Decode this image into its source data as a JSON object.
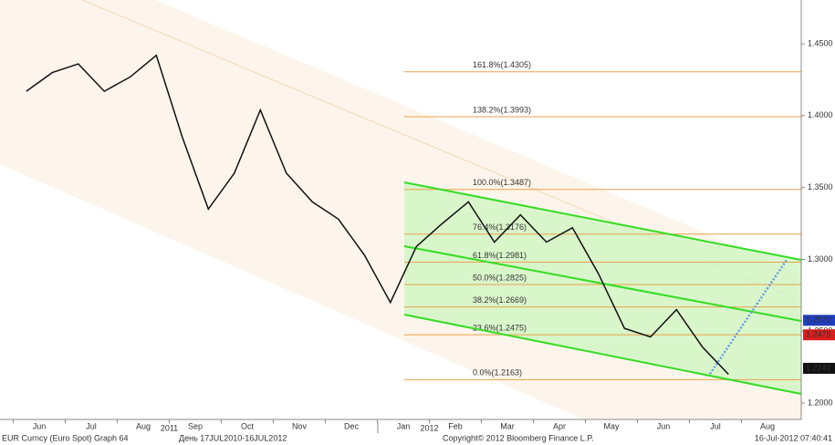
{
  "chart_data": {
    "type": "line",
    "title": "EUR Curncy (Euro Spot) Graph 64",
    "subtitle": "День 17JUL2010-16JUL2012",
    "copyright": "Copyright© 2012 Bloomberg Finance L.P.",
    "timestamp": "16-Jul-2012 07:40:41",
    "years": [
      {
        "label": "2011",
        "slot": 6
      },
      {
        "label": "2012",
        "slot": 16
      }
    ],
    "categories": [
      "Jun",
      null,
      "Jul",
      null,
      "Aug",
      null,
      "Sep",
      null,
      "Oct",
      null,
      "Nov",
      null,
      "Dec",
      null,
      "Jan",
      null,
      "Feb",
      null,
      "Mar",
      null,
      "Apr",
      null,
      "May",
      null,
      "Jun",
      null,
      "Jul",
      null,
      "Aug",
      null
    ],
    "series": [
      {
        "color": "#111111",
        "values": [
          1.417,
          1.43,
          1.436,
          1.417,
          1.427,
          1.442,
          1.385,
          1.335,
          1.36,
          1.404,
          1.36,
          1.34,
          1.328,
          1.303,
          1.27,
          1.309,
          1.325,
          1.34,
          1.312,
          1.331,
          1.312,
          1.322,
          1.29,
          1.252,
          1.246,
          1.265,
          1.239,
          1.22,
          null,
          null
        ]
      }
    ],
    "ylim": [
      1.1886,
      1.4805
    ],
    "yticks": [
      {
        "value": 1.2,
        "label": "1.2000"
      },
      {
        "value": 1.25,
        "label": "1.2500"
      },
      {
        "value": 1.3,
        "label": "1.3000"
      },
      {
        "value": 1.35,
        "label": "1.3500"
      },
      {
        "value": 1.4,
        "label": "1.4000"
      },
      {
        "value": 1.45,
        "label": "1.4500"
      }
    ],
    "fib_levels": [
      {
        "value": 1.4305,
        "label": "161.8%(1.4305)"
      },
      {
        "value": 1.3993,
        "label": "138.2%(1.3993)"
      },
      {
        "value": 1.3487,
        "label": "100.0%(1.3487)"
      },
      {
        "value": 1.3176,
        "label": "76.4%(1.3176)"
      },
      {
        "value": 1.2981,
        "label": "61.8%(1.2981)"
      },
      {
        "value": 1.2825,
        "label": "50.0%(1.2825)"
      },
      {
        "value": 1.2669,
        "label": "38.2%(1.2669)"
      },
      {
        "value": 1.2475,
        "label": "23.6%(1.2475)"
      },
      {
        "value": 1.2163,
        "label": "0.0%(1.2163)"
      }
    ],
    "price_tags": [
      {
        "value": 1.2576,
        "label": "1.2576",
        "color": "#1f3fbf"
      },
      {
        "value": 1.2475,
        "label": "1.2475",
        "color": "#d81e1e"
      },
      {
        "value": 1.2242,
        "label": "1.2242",
        "color": "#111111"
      }
    ]
  }
}
